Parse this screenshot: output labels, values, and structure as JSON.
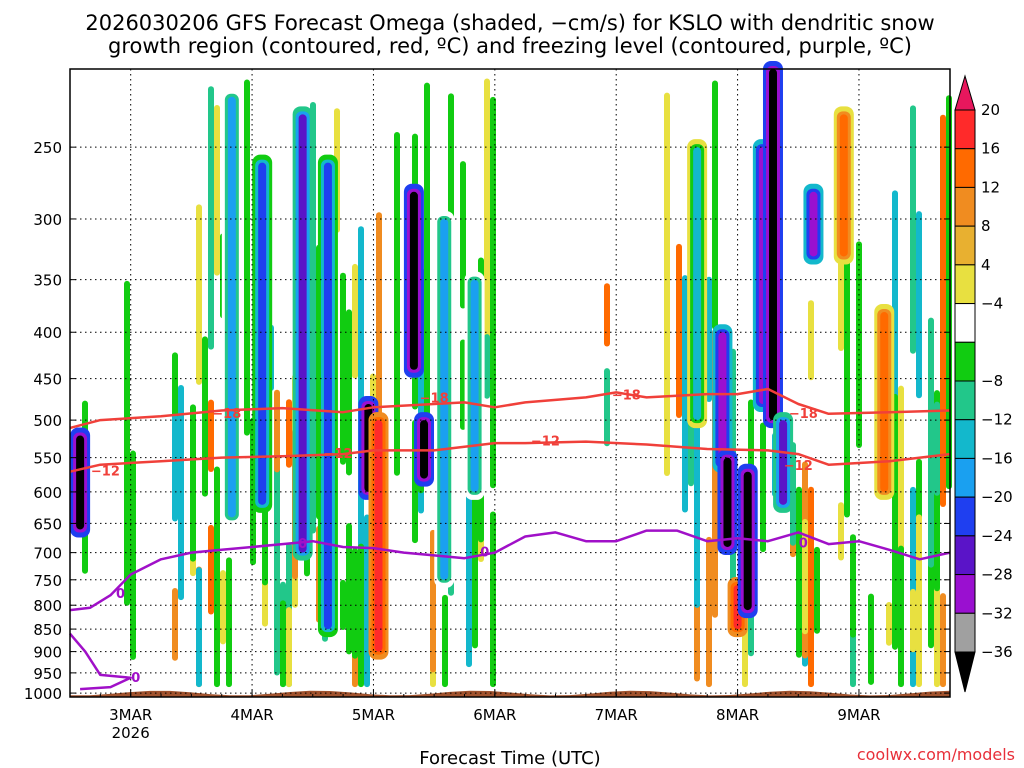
{
  "chart_data": {
    "type": "heatmap",
    "title_line1": "2026030206 GFS Forecast Omega (shaded, −cm/s) for KSLO with dendritic snow",
    "title_line2": "growth region (contoured, red, ºC) and freezing level (contoured, purple, ºC)",
    "xlabel": "Forecast Time (UTC)",
    "credit": "coolwx.com/models",
    "x_ticks": [
      {
        "label": "3MAR",
        "sublabel": "2026",
        "time_h": 18
      },
      {
        "label": "4MAR",
        "sublabel": "",
        "time_h": 42
      },
      {
        "label": "5MAR",
        "sublabel": "",
        "time_h": 66
      },
      {
        "label": "6MAR",
        "sublabel": "",
        "time_h": 90
      },
      {
        "label": "7MAR",
        "sublabel": "",
        "time_h": 114
      },
      {
        "label": "8MAR",
        "sublabel": "",
        "time_h": 138
      },
      {
        "label": "9MAR",
        "sublabel": "",
        "time_h": 162
      }
    ],
    "x_range_h": [
      6,
      180
    ],
    "y_ticks": [
      "250",
      "300",
      "350",
      "400",
      "450",
      "500",
      "550",
      "600",
      "650",
      "700",
      "750",
      "800",
      "850",
      "900",
      "950",
      "1000"
    ],
    "y_range_hpa": [
      205,
      1010
    ],
    "colorbar": {
      "labels": [
        "20",
        "16",
        "12",
        "8",
        "4",
        "−4",
        "−8",
        "−12",
        "−16",
        "−20",
        "−24",
        "−28",
        "−32",
        "−36"
      ],
      "colors": [
        "#e8175d",
        "#ff2a2a",
        "#ff6a00",
        "#f08c20",
        "#e8b030",
        "#e8e040",
        "#ffffff",
        "#11cc11",
        "#22c78a",
        "#13b8cc",
        "#1aa0f0",
        "#1f3ff0",
        "#5a14c8",
        "#9a10d0",
        "#a0a0a0",
        "#000000"
      ]
    },
    "series": [
      {
        "name": "-18",
        "color": "#f0403a",
        "points": [
          [
            6,
            510
          ],
          [
            12,
            500
          ],
          [
            24,
            495
          ],
          [
            36,
            488
          ],
          [
            48,
            485
          ],
          [
            60,
            490
          ],
          [
            66,
            484
          ],
          [
            78,
            480
          ],
          [
            84,
            478
          ],
          [
            90,
            484
          ],
          [
            96,
            478
          ],
          [
            108,
            472
          ],
          [
            114,
            466
          ],
          [
            120,
            472
          ],
          [
            126,
            470
          ],
          [
            132,
            468
          ],
          [
            138,
            468
          ],
          [
            144,
            462
          ],
          [
            150,
            480
          ],
          [
            156,
            492
          ],
          [
            168,
            490
          ],
          [
            180,
            488
          ]
        ]
      },
      {
        "name": "-12",
        "color": "#f0403a",
        "points": [
          [
            6,
            570
          ],
          [
            12,
            560
          ],
          [
            24,
            555
          ],
          [
            36,
            550
          ],
          [
            48,
            548
          ],
          [
            60,
            545
          ],
          [
            66,
            540
          ],
          [
            78,
            540
          ],
          [
            84,
            535
          ],
          [
            90,
            530
          ],
          [
            96,
            530
          ],
          [
            108,
            528
          ],
          [
            120,
            532
          ],
          [
            132,
            538
          ],
          [
            144,
            540
          ],
          [
            150,
            545
          ],
          [
            156,
            560
          ],
          [
            168,
            555
          ],
          [
            180,
            545
          ]
        ]
      },
      {
        "name": "0",
        "color": "#a010c8",
        "points": [
          [
            6,
            810
          ],
          [
            10,
            805
          ],
          [
            14,
            780
          ],
          [
            18,
            740
          ],
          [
            24,
            712
          ],
          [
            30,
            700
          ],
          [
            36,
            695
          ],
          [
            42,
            690
          ],
          [
            48,
            685
          ],
          [
            54,
            680
          ],
          [
            60,
            690
          ],
          [
            66,
            692
          ],
          [
            72,
            700
          ],
          [
            78,
            705
          ],
          [
            84,
            710
          ],
          [
            90,
            700
          ],
          [
            96,
            672
          ],
          [
            102,
            665
          ],
          [
            108,
            680
          ],
          [
            114,
            680
          ],
          [
            120,
            662
          ],
          [
            126,
            662
          ],
          [
            132,
            680
          ],
          [
            138,
            675
          ],
          [
            144,
            680
          ],
          [
            150,
            665
          ],
          [
            156,
            685
          ],
          [
            162,
            680
          ],
          [
            168,
            695
          ],
          [
            174,
            712
          ],
          [
            180,
            700
          ]
        ]
      },
      {
        "name": "0",
        "color": "#a010c8",
        "points": [
          [
            6,
            860
          ],
          [
            9,
            900
          ],
          [
            12,
            955
          ],
          [
            18,
            962
          ],
          [
            14,
            985
          ],
          [
            8,
            990
          ]
        ]
      }
    ],
    "contour_labels": [
      {
        "text": "−18",
        "time_h": 37,
        "hpa": 492,
        "color": "#f0403a"
      },
      {
        "text": "−18",
        "time_h": 78,
        "hpa": 473,
        "color": "#f0403a"
      },
      {
        "text": "−18",
        "time_h": 116,
        "hpa": 470,
        "color": "#f0403a"
      },
      {
        "text": "−18",
        "time_h": 151,
        "hpa": 492,
        "color": "#f0403a"
      },
      {
        "text": "−12",
        "time_h": 13,
        "hpa": 570,
        "color": "#f0403a"
      },
      {
        "text": "−12",
        "time_h": 59,
        "hpa": 545,
        "color": "#f0403a"
      },
      {
        "text": "−12",
        "time_h": 100,
        "hpa": 528,
        "color": "#f0403a"
      },
      {
        "text": "−12",
        "time_h": 150,
        "hpa": 562,
        "color": "#f0403a"
      },
      {
        "text": "0",
        "time_h": 16,
        "hpa": 778,
        "color": "#a010c8"
      },
      {
        "text": "0",
        "time_h": 52,
        "hpa": 685,
        "color": "#a010c8"
      },
      {
        "text": "0",
        "time_h": 88,
        "hpa": 700,
        "color": "#a010c8"
      },
      {
        "text": "0",
        "time_h": 151,
        "hpa": 684,
        "color": "#a010c8"
      },
      {
        "text": "0",
        "time_h": 19,
        "hpa": 963,
        "color": "#a010c8"
      }
    ],
    "omega_features": [
      {
        "time_h": 8,
        "hpa_top": 520,
        "hpa_bot": 660,
        "value": -36
      },
      {
        "time_h": 38,
        "hpa_top": 220,
        "hpa_bot": 640,
        "value": -16
      },
      {
        "time_h": 44,
        "hpa_top": 260,
        "hpa_bot": 620,
        "value": -20
      },
      {
        "time_h": 52,
        "hpa_top": 230,
        "hpa_bot": 700,
        "value": -24
      },
      {
        "time_h": 57,
        "hpa_top": 260,
        "hpa_bot": 850,
        "value": -20
      },
      {
        "time_h": 65,
        "hpa_top": 480,
        "hpa_bot": 600,
        "value": -36
      },
      {
        "time_h": 67,
        "hpa_top": 500,
        "hpa_bot": 900,
        "value": 16
      },
      {
        "time_h": 74,
        "hpa_top": 280,
        "hpa_bot": 440,
        "value": -36
      },
      {
        "time_h": 76,
        "hpa_top": 500,
        "hpa_bot": 580,
        "value": -36
      },
      {
        "time_h": 80,
        "hpa_top": 300,
        "hpa_bot": 750,
        "value": -16
      },
      {
        "time_h": 86,
        "hpa_top": 350,
        "hpa_bot": 600,
        "value": -16
      },
      {
        "time_h": 130,
        "hpa_top": 250,
        "hpa_bot": 500,
        "value": -12
      },
      {
        "time_h": 135,
        "hpa_top": 400,
        "hpa_bot": 560,
        "value": -28
      },
      {
        "time_h": 136,
        "hpa_top": 550,
        "hpa_bot": 690,
        "value": -36
      },
      {
        "time_h": 138,
        "hpa_top": 760,
        "hpa_bot": 850,
        "value": 16
      },
      {
        "time_h": 140,
        "hpa_top": 570,
        "hpa_bot": 810,
        "value": -36
      },
      {
        "time_h": 143,
        "hpa_top": 250,
        "hpa_bot": 480,
        "value": -28
      },
      {
        "time_h": 145,
        "hpa_top": 205,
        "hpa_bot": 500,
        "value": -36
      },
      {
        "time_h": 147,
        "hpa_top": 500,
        "hpa_bot": 620,
        "value": -24
      },
      {
        "time_h": 153,
        "hpa_top": 280,
        "hpa_bot": 330,
        "value": -28
      },
      {
        "time_h": 159,
        "hpa_top": 230,
        "hpa_bot": 330,
        "value": 12
      },
      {
        "time_h": 167,
        "hpa_top": 380,
        "hpa_bot": 600,
        "value": 12
      }
    ]
  }
}
